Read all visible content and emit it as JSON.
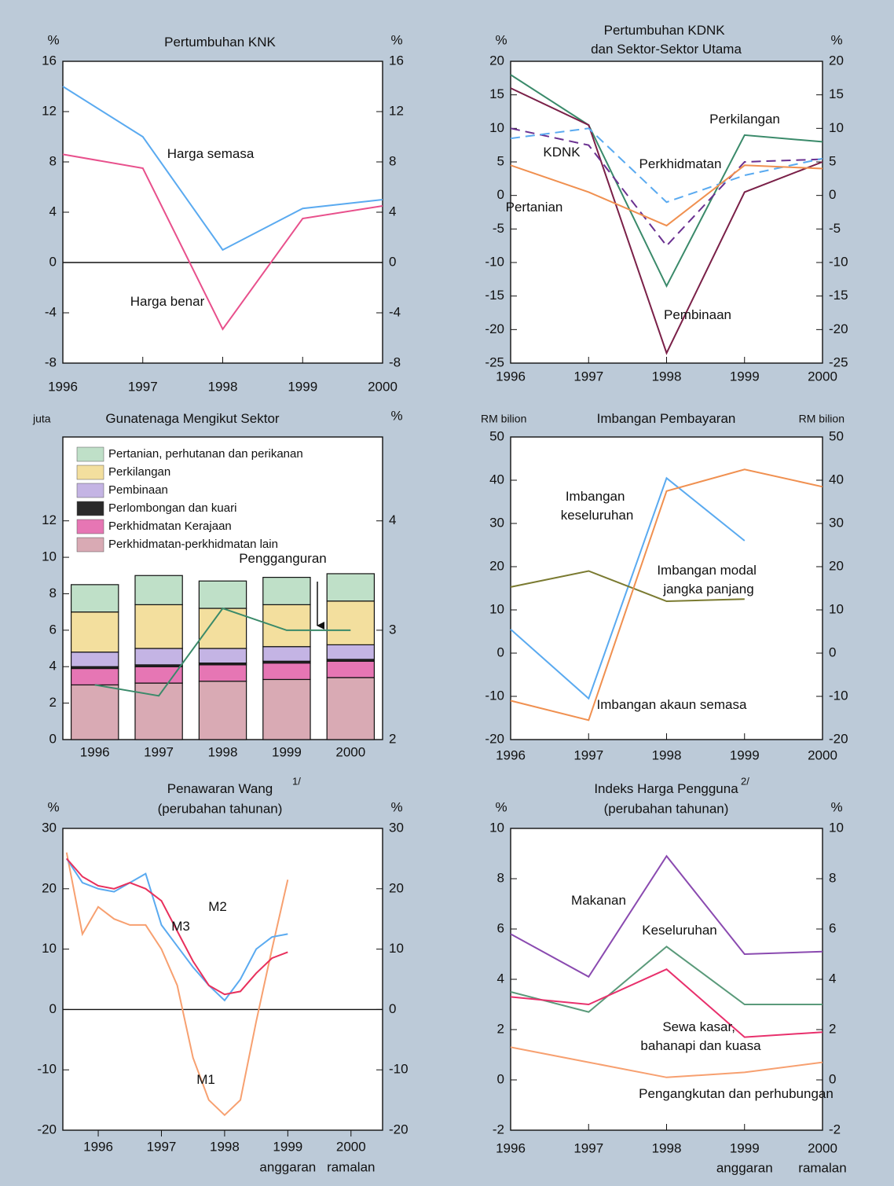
{
  "chart_data": [
    {
      "type": "line",
      "title": "Pertumbuhan KNK",
      "y_unit": "%",
      "y2_unit": "%",
      "categories": [
        "1996",
        "1997",
        "1998",
        "1999",
        "2000"
      ],
      "ylim": [
        -8,
        16
      ],
      "yticks": [
        -8,
        -4,
        0,
        4,
        8,
        12,
        16
      ],
      "y2lim": [
        -8,
        16
      ],
      "y2ticks": [
        -8,
        -4,
        0,
        4,
        8,
        12,
        16
      ],
      "zero_line": true,
      "series": [
        {
          "name": "Harga semasa",
          "color": "#5aaaf0",
          "values": [
            14,
            10,
            1,
            4.3,
            5
          ]
        },
        {
          "name": "Harga benar",
          "color": "#e8508c",
          "values": [
            8.6,
            7.5,
            -5.3,
            3.5,
            4.5
          ]
        }
      ]
    },
    {
      "type": "line",
      "title": "Pertumbuhan KDNK dan Sektor-Sektor Utama",
      "y_unit": "%",
      "y2_unit": "%",
      "categories": [
        "1996",
        "1997",
        "1998",
        "1999",
        "2000"
      ],
      "ylim": [
        -25,
        20
      ],
      "yticks": [
        -25,
        -20,
        -15,
        -10,
        -5,
        0,
        5,
        10,
        15,
        20
      ],
      "y2lim": [
        -25,
        20
      ],
      "y2ticks": [
        -25,
        -20,
        -15,
        -10,
        -5,
        0,
        5,
        10,
        15,
        20
      ],
      "series": [
        {
          "name": "Perkilangan",
          "color": "#3a8a6a",
          "values": [
            18,
            10.5,
            -13.5,
            9,
            8
          ]
        },
        {
          "name": "Pembinaan",
          "color": "#7a2048",
          "values": [
            16,
            10.5,
            -23.5,
            0.5,
            5
          ]
        },
        {
          "name": "KDNK",
          "color": "#6a3090",
          "dash": true,
          "values": [
            10,
            7.5,
            -7.5,
            5,
            5.4
          ]
        },
        {
          "name": "Perkhidmatan",
          "color": "#5aaaf0",
          "dash": true,
          "values": [
            8.5,
            10,
            -1,
            3,
            5.5
          ]
        },
        {
          "name": "Pertanian",
          "color": "#f09050",
          "values": [
            4.5,
            0.5,
            -4.5,
            4.5,
            4
          ]
        }
      ]
    },
    {
      "type": "bar",
      "title": "Gunatenaga Mengikut Sektor",
      "y_unit": "juta",
      "y2_unit": "%",
      "categories": [
        "1996",
        "1997",
        "1998",
        "1999",
        "2000"
      ],
      "ylim": [
        0,
        16.6
      ],
      "yticks": [
        0,
        2,
        4,
        6,
        8,
        10,
        12
      ],
      "y2lim": [
        2,
        4.767
      ],
      "y2ticks": [
        2,
        3,
        4
      ],
      "series": [
        {
          "name": "Pertanian, perhutanan dan perikanan",
          "color": "#bfe0c8",
          "values": [
            1.5,
            1.6,
            1.5,
            1.5,
            1.5
          ]
        },
        {
          "name": "Perkilangan",
          "color": "#f3df9e",
          "values": [
            2.2,
            2.4,
            2.2,
            2.3,
            2.4
          ]
        },
        {
          "name": "Pembinaan",
          "color": "#c4b4e4",
          "values": [
            0.8,
            0.9,
            0.8,
            0.8,
            0.8
          ]
        },
        {
          "name": "Perlombongan dan kuari",
          "color": "#2a2a2a",
          "values": [
            0.1,
            0.1,
            0.1,
            0.1,
            0.1
          ]
        },
        {
          "name": "Perkhidmatan Kerajaan",
          "color": "#e676b4",
          "values": [
            0.9,
            0.9,
            0.9,
            0.9,
            0.9
          ]
        },
        {
          "name": "Perkhidmatan-perkhidmatan lain",
          "color": "#d9aab4",
          "values": [
            3.0,
            3.1,
            3.2,
            3.3,
            3.4
          ]
        },
        {
          "name": "Pengganguran",
          "type": "line",
          "axis": "y2",
          "color": "#3a8a6a",
          "values": [
            2.5,
            2.4,
            3.2,
            3.0,
            3.0
          ]
        }
      ]
    },
    {
      "type": "line",
      "title": "Imbangan Pembayaran",
      "y_unit": "RM bilion",
      "y2_unit": "RM bilion",
      "categories": [
        "1996",
        "1997",
        "1998",
        "1999",
        "2000"
      ],
      "ylim": [
        -20,
        50
      ],
      "yticks": [
        -20,
        -10,
        0,
        10,
        20,
        30,
        40,
        50
      ],
      "y2lim": [
        -20,
        50
      ],
      "y2ticks": [
        -20,
        -10,
        0,
        10,
        20,
        30,
        40,
        50
      ],
      "series": [
        {
          "name": "Imbangan keseluruhan",
          "color": "#5aaaf0",
          "values": [
            5.5,
            -10.5,
            40.5,
            26,
            null
          ]
        },
        {
          "name": "Imbangan modal jangka panjang",
          "color": "#7a7a30",
          "values": [
            15.3,
            19,
            12,
            12.5,
            null
          ]
        },
        {
          "name": "Imbangan akaun semasa",
          "color": "#f09050",
          "values": [
            -11,
            -15.5,
            37.5,
            42.5,
            38.5
          ]
        }
      ]
    },
    {
      "type": "line",
      "title": "Penawaran Wang",
      "title_note": "1/",
      "subtitle": "(perubahan tahunan)",
      "y_unit": "%",
      "y2_unit": "%",
      "x": [
        1996,
        1996.25,
        1996.5,
        1996.75,
        1997,
        1997.25,
        1997.5,
        1997.75,
        1998,
        1998.25,
        1998.5,
        1998.75,
        1999,
        1999.25,
        1999.5
      ],
      "xlim": [
        1995.94,
        2001
      ],
      "xticks": [
        {
          "value": 1996.5,
          "label": "1996"
        },
        {
          "value": 1997.5,
          "label": "1997"
        },
        {
          "value": 1998.5,
          "label": "1998"
        },
        {
          "value": 1999.5,
          "label": "1999"
        },
        {
          "value": 2000.5,
          "label": "2000"
        }
      ],
      "x_notes": [
        "anggaran",
        "ramalan"
      ],
      "ylim": [
        -20,
        30
      ],
      "yticks": [
        -20,
        -10,
        0,
        10,
        20,
        30
      ],
      "y2lim": [
        -20,
        30
      ],
      "y2ticks": [
        -20,
        -10,
        0,
        10,
        20,
        30
      ],
      "zero_line": true,
      "series": [
        {
          "name": "M1",
          "color": "#f7a070",
          "values": [
            26,
            12.5,
            17,
            15,
            14,
            14,
            10,
            4,
            -8,
            -15,
            -17.5,
            -15,
            -2,
            10,
            21.5
          ]
        },
        {
          "name": "M2",
          "color": "#5aaaf0",
          "values": [
            25,
            21,
            20,
            19.5,
            21,
            22.5,
            14,
            10.5,
            7,
            4,
            1.5,
            5,
            10,
            12,
            12.5
          ]
        },
        {
          "name": "M3",
          "color": "#e8305c",
          "values": [
            25,
            22,
            20.5,
            20,
            21,
            20,
            18,
            13,
            8,
            4,
            2.5,
            3,
            6,
            8.5,
            9.5
          ]
        }
      ]
    },
    {
      "type": "line",
      "title": "Indeks Harga Pengguna",
      "title_note": "2/",
      "subtitle": "(perubahan tahunan)",
      "y_unit": "%",
      "y2_unit": "%",
      "categories": [
        "1996",
        "1997",
        "1998",
        "1999",
        "2000"
      ],
      "x_notes": [
        "anggaran",
        "ramalan"
      ],
      "ylim": [
        -2,
        10
      ],
      "yticks": [
        -2,
        0,
        2,
        4,
        6,
        8,
        10
      ],
      "y2lim": [
        -2,
        10
      ],
      "y2ticks": [
        -2,
        0,
        2,
        4,
        6,
        8,
        10
      ],
      "series": [
        {
          "name": "Makanan",
          "color": "#8a4ab0",
          "values": [
            5.8,
            4.1,
            8.9,
            5,
            5.1
          ]
        },
        {
          "name": "Keseluruhan",
          "color": "#5a9a7a",
          "values": [
            3.5,
            2.7,
            5.3,
            3,
            3
          ]
        },
        {
          "name": "Sewa kasar, bahanapi dan kuasa",
          "color": "#e8306c",
          "values": [
            3.3,
            3.0,
            4.4,
            1.7,
            1.9
          ]
        },
        {
          "name": "Pengangkutan dan perhubungan",
          "color": "#f7a070",
          "values": [
            1.3,
            0.7,
            0.1,
            0.3,
            0.7
          ]
        }
      ]
    }
  ]
}
